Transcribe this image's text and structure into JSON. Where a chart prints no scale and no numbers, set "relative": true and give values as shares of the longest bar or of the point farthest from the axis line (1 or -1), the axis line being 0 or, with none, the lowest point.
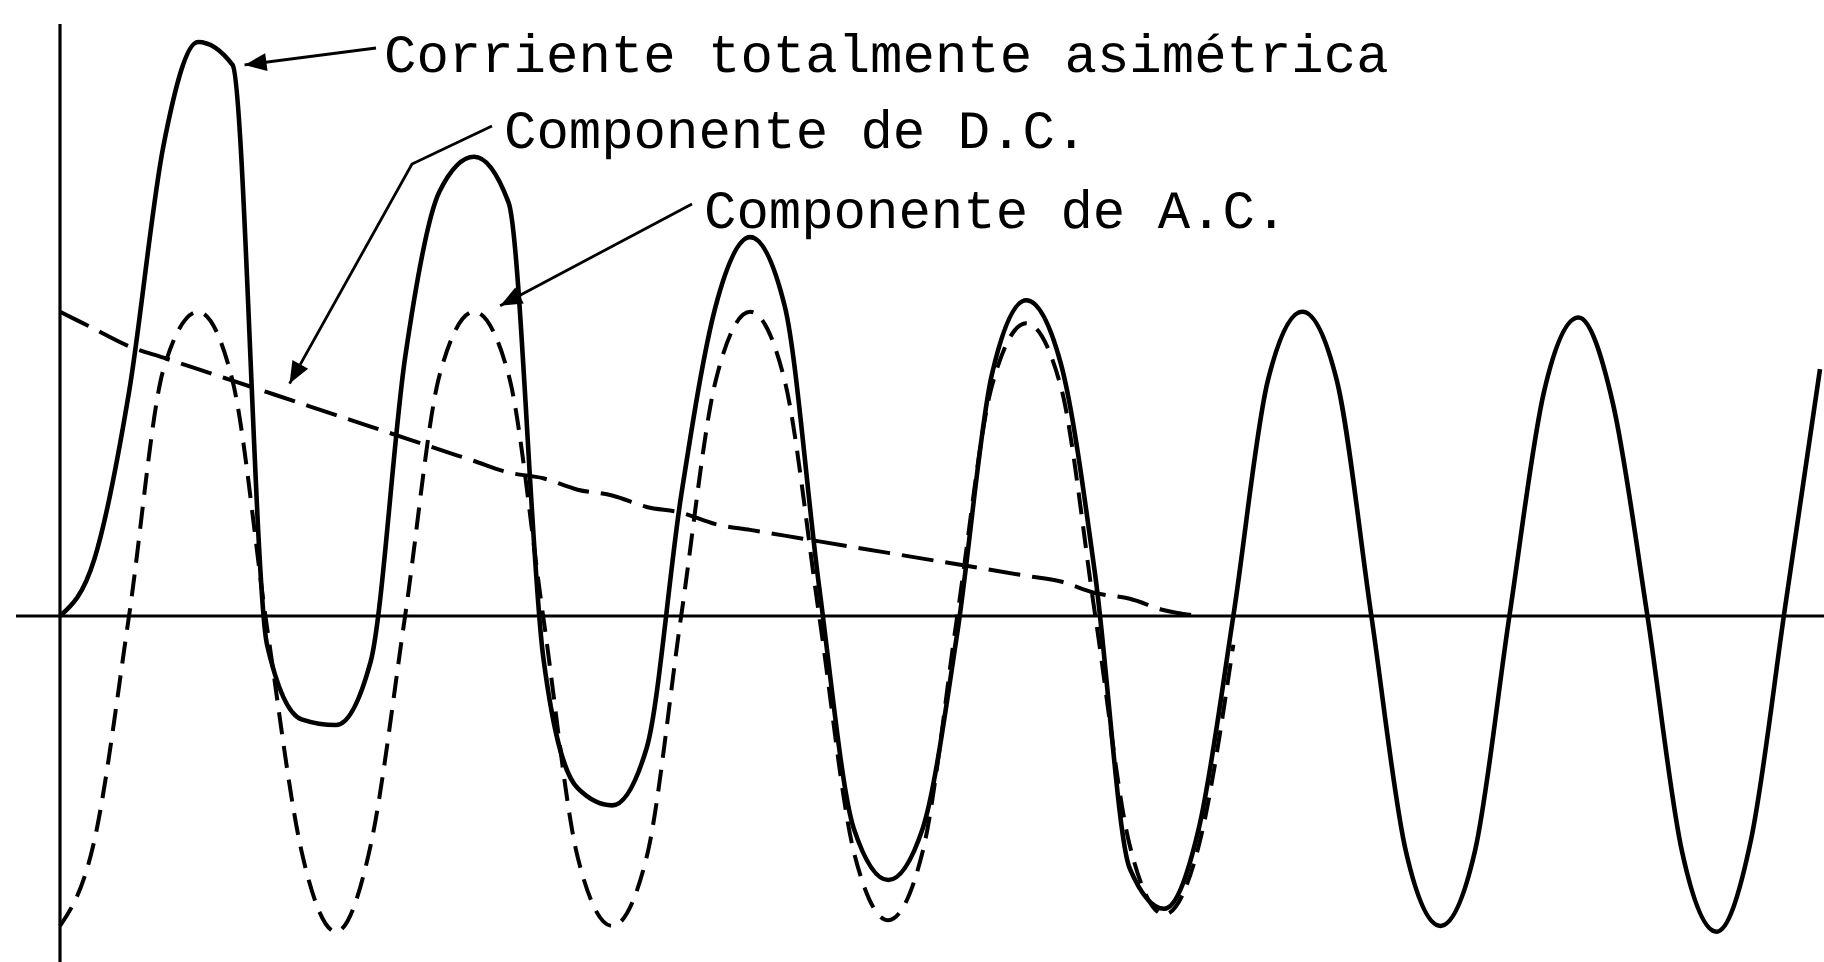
{
  "chart_data": {
    "type": "line",
    "relative": true,
    "categories": [
      null,
      null,
      null,
      null,
      null,
      null,
      null,
      null,
      null,
      null,
      null,
      null,
      null,
      null,
      null,
      null,
      null,
      null,
      null,
      null,
      null,
      null,
      null,
      null,
      null,
      null,
      null,
      null,
      null,
      null,
      null,
      null,
      null,
      null,
      null,
      null,
      null,
      null,
      null,
      null,
      null,
      null,
      null,
      null,
      null,
      null,
      null,
      null,
      null,
      null,
      null,
      null
    ],
    "series": [
      {
        "name": "Corriente totalmente asimétrica",
        "color": "#000000",
        "line_style": "solid",
        "values": [
          0,
          0.1,
          0.39,
          0.82,
          1,
          0.96,
          -0.05,
          -0.18,
          -0.19,
          -0.08,
          0.45,
          0.74,
          0.8,
          0.72,
          -0.07,
          -0.3,
          -0.33,
          -0.23,
          0.21,
          0.54,
          0.66,
          0.54,
          0.05,
          -0.37,
          -0.46,
          -0.37,
          -0.03,
          0.42,
          0.55,
          0.44,
          0.07,
          -0.44,
          -0.51,
          -0.37,
          0,
          0.41,
          0.53,
          0.41,
          0,
          -0.41,
          -0.54,
          -0.41,
          0,
          0.39,
          0.52,
          0.37,
          0,
          -0.41,
          -0.55,
          -0.39,
          0.02,
          0.43
        ]
      },
      {
        "name": "Componente de D.C.",
        "color": "#000000",
        "line_style": "dashed",
        "values": [
          0.53,
          0.5,
          0.47,
          0.45,
          0.43,
          0.41,
          0.39,
          0.37,
          0.35,
          0.33,
          0.31,
          0.29,
          0.27,
          0.25,
          0.24,
          0.22,
          0.21,
          0.19,
          0.18,
          0.16,
          0.15,
          0.14,
          0.13,
          0.12,
          0.11,
          0.1,
          0.09,
          0.08,
          0.07,
          0.06,
          0.04,
          0.03,
          0.01,
          0,
          null,
          null,
          null,
          null,
          null,
          null,
          null,
          null,
          null,
          null,
          null,
          null,
          null,
          null,
          null,
          null,
          null,
          null
        ]
      },
      {
        "name": "Componente de A.C.",
        "color": "#000000",
        "line_style": "dashed",
        "values": [
          -0.54,
          -0.39,
          0,
          0.43,
          0.53,
          0.41,
          -0.02,
          -0.41,
          -0.55,
          -0.4,
          0,
          0.42,
          0.53,
          0.42,
          0,
          -0.42,
          -0.54,
          -0.42,
          0,
          0.41,
          0.53,
          0.41,
          0,
          -0.41,
          -0.53,
          -0.41,
          0,
          0.4,
          0.51,
          0.4,
          0,
          -0.4,
          -0.52,
          -0.4,
          -0.05,
          null,
          null,
          null,
          null,
          null,
          null,
          null,
          null,
          null,
          null,
          null,
          null,
          null,
          null,
          null,
          null,
          null
        ]
      }
    ]
  }
}
